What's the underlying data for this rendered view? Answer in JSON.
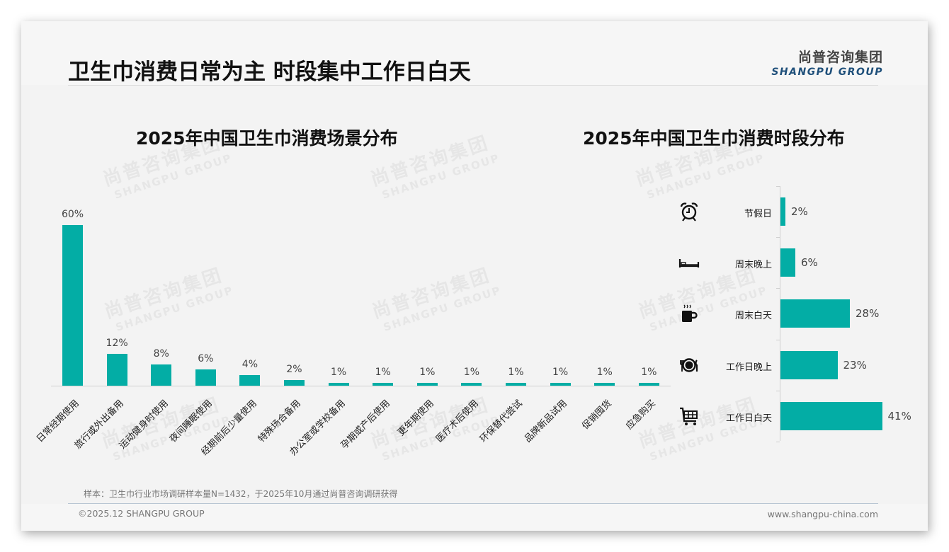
{
  "page": {
    "title": "卫生巾消费日常为主 时段集中工作日白天",
    "logo": {
      "cn": "尚普咨询集团",
      "en": "SHANGPU GROUP"
    },
    "watermark": {
      "cn": "尚普咨询集团",
      "en": "SHANGPU GROUP"
    },
    "note": "样本：卫生巾行业市场调研样本量N=1432，于2025年10月通过尚普咨询调研获得",
    "copyright": "©2025.12 SHANGPU GROUP",
    "website": "www.shangpu-china.com",
    "accent_color": "#03ada5",
    "brand_color": "#1e4f7a"
  },
  "chart_data": [
    {
      "type": "bar",
      "title": "2025年中国卫生巾消费场景分布",
      "xlabel": "",
      "ylabel": "",
      "categories": [
        "日常经期使用",
        "旅行或外出备用",
        "运动健身时使用",
        "夜间睡眠使用",
        "经期前后少量使用",
        "特殊场合备用",
        "办公室或学校备用",
        "孕期或产后使用",
        "更年期使用",
        "医疗术后使用",
        "环保替代尝试",
        "品牌新品试用",
        "促销囤货",
        "应急购买"
      ],
      "values": [
        60,
        12,
        8,
        6,
        4,
        2,
        1,
        1,
        1,
        1,
        1,
        1,
        1,
        1
      ],
      "value_labels": [
        "60%",
        "12%",
        "8%",
        "6%",
        "4%",
        "2%",
        "1%",
        "1%",
        "1%",
        "1%",
        "1%",
        "1%",
        "1%",
        "1%"
      ],
      "unit": "%",
      "ylim": [
        0,
        60
      ],
      "grid": false,
      "legend": null,
      "color": "#03ada5"
    },
    {
      "type": "bar",
      "orientation": "horizontal",
      "title": "2025年中国卫生巾消费时段分布",
      "xlabel": "",
      "ylabel": "",
      "categories": [
        "节假日",
        "周末晚上",
        "周末白天",
        "工作日晚上",
        "工作日白天"
      ],
      "values": [
        2,
        6,
        28,
        23,
        41
      ],
      "value_labels": [
        "2%",
        "6%",
        "28%",
        "23%",
        "41%"
      ],
      "icons": [
        "alarm-clock-icon",
        "bed-icon",
        "coffee-mug-icon",
        "dinner-plate-icon",
        "shopping-cart-icon"
      ],
      "unit": "%",
      "xlim": [
        0,
        41
      ],
      "grid": false,
      "legend": null,
      "color": "#03ada5"
    }
  ]
}
